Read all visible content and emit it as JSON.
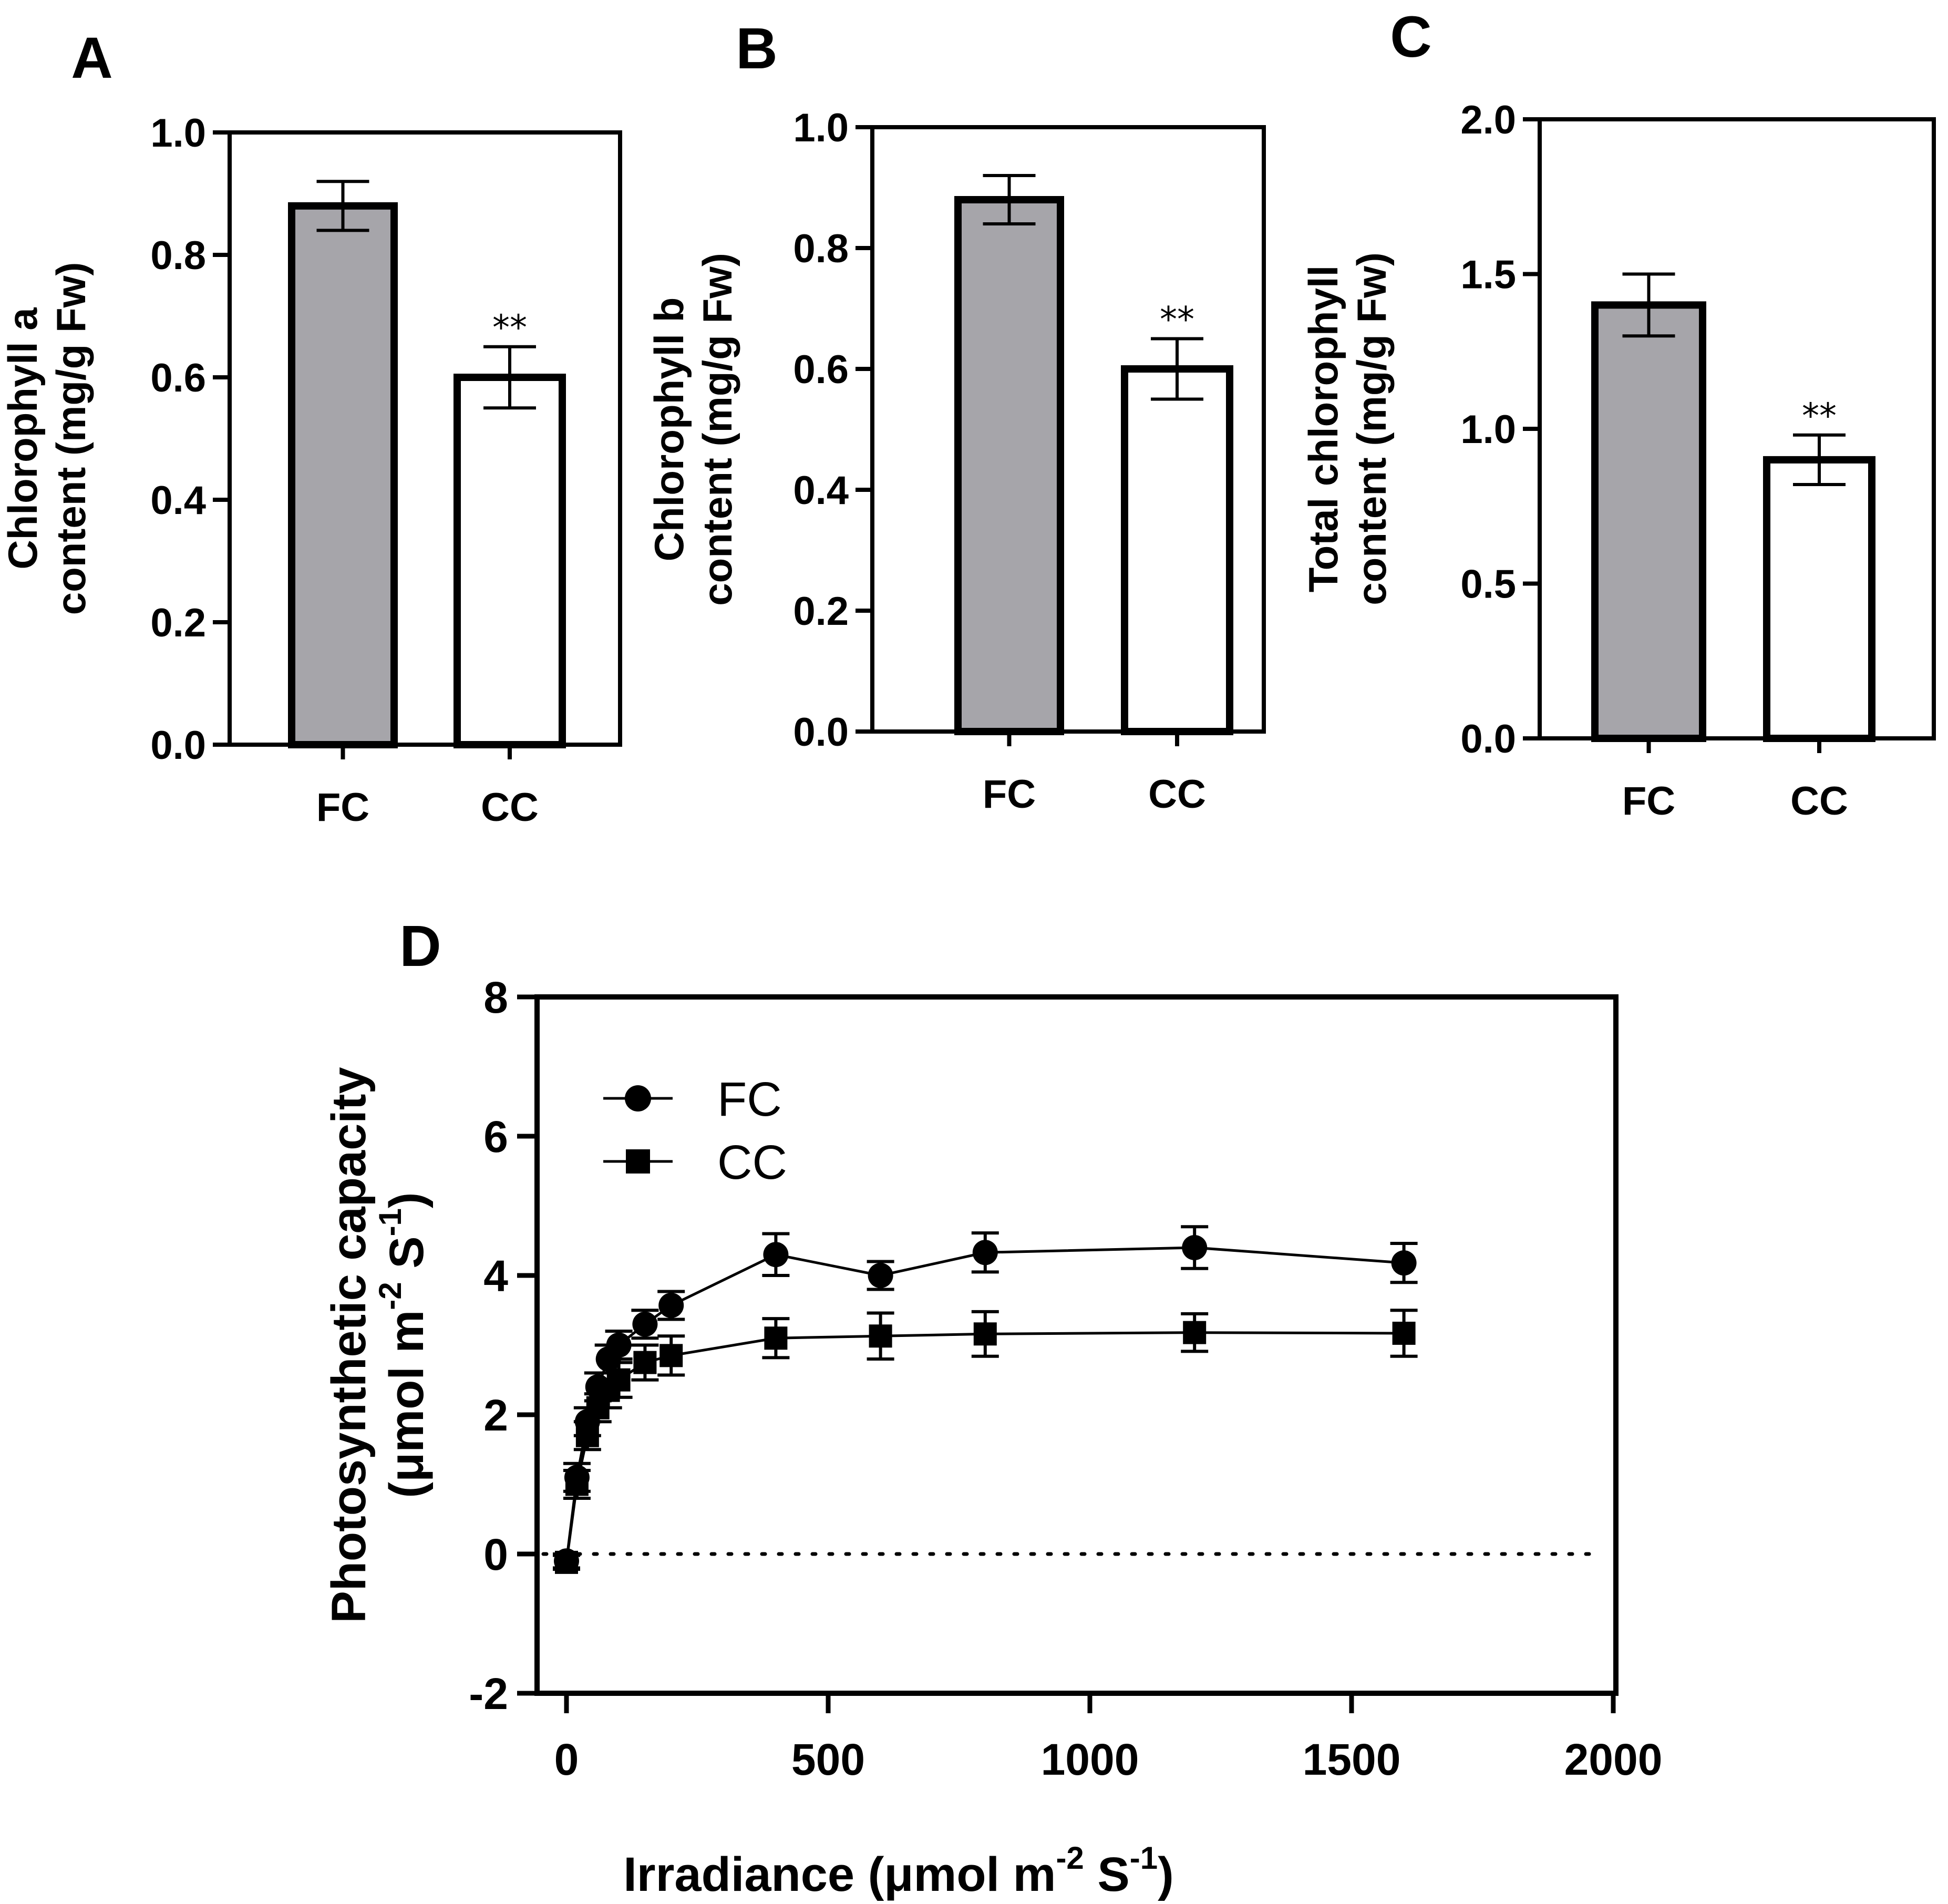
{
  "colors": {
    "fc_fill": "#a6a5aa",
    "cc_fill": "#ffffff",
    "ink": "#000000"
  },
  "chart_data": [
    {
      "id": "A",
      "panel_label": "A",
      "type": "bar",
      "ylabel_lines": [
        "Chlorophyll a",
        "content (mg/g Fw)"
      ],
      "categories": [
        "FC",
        "CC"
      ],
      "values": [
        0.88,
        0.6
      ],
      "errors": [
        0.04,
        0.05
      ],
      "significance": [
        "",
        "**"
      ],
      "ylim": [
        0,
        1.0
      ],
      "yticks": [
        0.0,
        0.2,
        0.4,
        0.6,
        0.8,
        1.0
      ],
      "ytick_labels": [
        "0.0",
        "0.2",
        "0.4",
        "0.6",
        "0.8",
        "1.0"
      ]
    },
    {
      "id": "B",
      "panel_label": "B",
      "type": "bar",
      "ylabel_lines": [
        "Chlorophyll b",
        "content (mg/g Fw)"
      ],
      "categories": [
        "FC",
        "CC"
      ],
      "values": [
        0.88,
        0.6
      ],
      "errors": [
        0.04,
        0.05
      ],
      "significance": [
        "",
        "**"
      ],
      "ylim": [
        0,
        1.0
      ],
      "yticks": [
        0.0,
        0.2,
        0.4,
        0.6,
        0.8,
        1.0
      ],
      "ytick_labels": [
        "0.0",
        "0.2",
        "0.4",
        "0.6",
        "0.8",
        "1.0"
      ]
    },
    {
      "id": "C",
      "panel_label": "C",
      "type": "bar",
      "ylabel_lines": [
        "Total chlorophyll",
        "content (mg/g Fw)"
      ],
      "categories": [
        "FC",
        "CC"
      ],
      "values": [
        1.4,
        0.9
      ],
      "errors": [
        0.1,
        0.08
      ],
      "significance": [
        "",
        "**"
      ],
      "ylim": [
        0,
        2.0
      ],
      "yticks": [
        0.0,
        0.5,
        1.0,
        1.5,
        2.0
      ],
      "ytick_labels": [
        "0.0",
        "0.5",
        "1.0",
        "1.5",
        "2.0"
      ]
    },
    {
      "id": "D",
      "panel_label": "D",
      "type": "line",
      "xlabel": "Irradiance (μmol m",
      "xlabel_exp1": "-2",
      "xlabel_mid": " S",
      "xlabel_exp2": "-1",
      "xlabel_end": ")",
      "ylabel_line1": "Photosynthetic capacity",
      "ylabel_line2": "(μmol m",
      "ylabel_exp1": "-2",
      "ylabel_mid": " S",
      "ylabel_exp2": "-1",
      "ylabel_end": ")",
      "xlim": [
        0,
        2000
      ],
      "ylim": [
        -2,
        8
      ],
      "xticks": [
        0,
        500,
        1000,
        1500,
        2000
      ],
      "xtick_labels": [
        "0",
        "500",
        "1000",
        "1500",
        "2000"
      ],
      "yticks": [
        -2,
        0,
        2,
        4,
        6,
        8
      ],
      "ytick_labels": [
        "-2",
        "0",
        "2",
        "4",
        "6",
        "8"
      ],
      "zero_reference_line": "dotted",
      "legend": [
        "FC",
        "CC"
      ],
      "legend_position": "top-left",
      "series": [
        {
          "name": "FC",
          "marker": "circle",
          "x": [
            0,
            20,
            40,
            60,
            80,
            100,
            150,
            200,
            400,
            600,
            800,
            1200,
            1600
          ],
          "y": [
            -0.1,
            1.1,
            1.9,
            2.4,
            2.8,
            3.0,
            3.3,
            3.57,
            4.3,
            4.0,
            4.33,
            4.4,
            4.18
          ],
          "err": [
            0.1,
            0.2,
            0.2,
            0.2,
            0.2,
            0.2,
            0.2,
            0.2,
            0.3,
            0.2,
            0.28,
            0.3,
            0.28
          ]
        },
        {
          "name": "CC",
          "marker": "square",
          "x": [
            0,
            20,
            40,
            60,
            80,
            100,
            150,
            200,
            400,
            600,
            800,
            1200,
            1600
          ],
          "y": [
            -0.12,
            1.0,
            1.7,
            2.1,
            2.35,
            2.5,
            2.75,
            2.85,
            3.1,
            3.13,
            3.16,
            3.18,
            3.17
          ],
          "err": [
            0.1,
            0.2,
            0.2,
            0.2,
            0.25,
            0.25,
            0.25,
            0.28,
            0.28,
            0.33,
            0.32,
            0.27,
            0.33
          ]
        }
      ]
    }
  ]
}
